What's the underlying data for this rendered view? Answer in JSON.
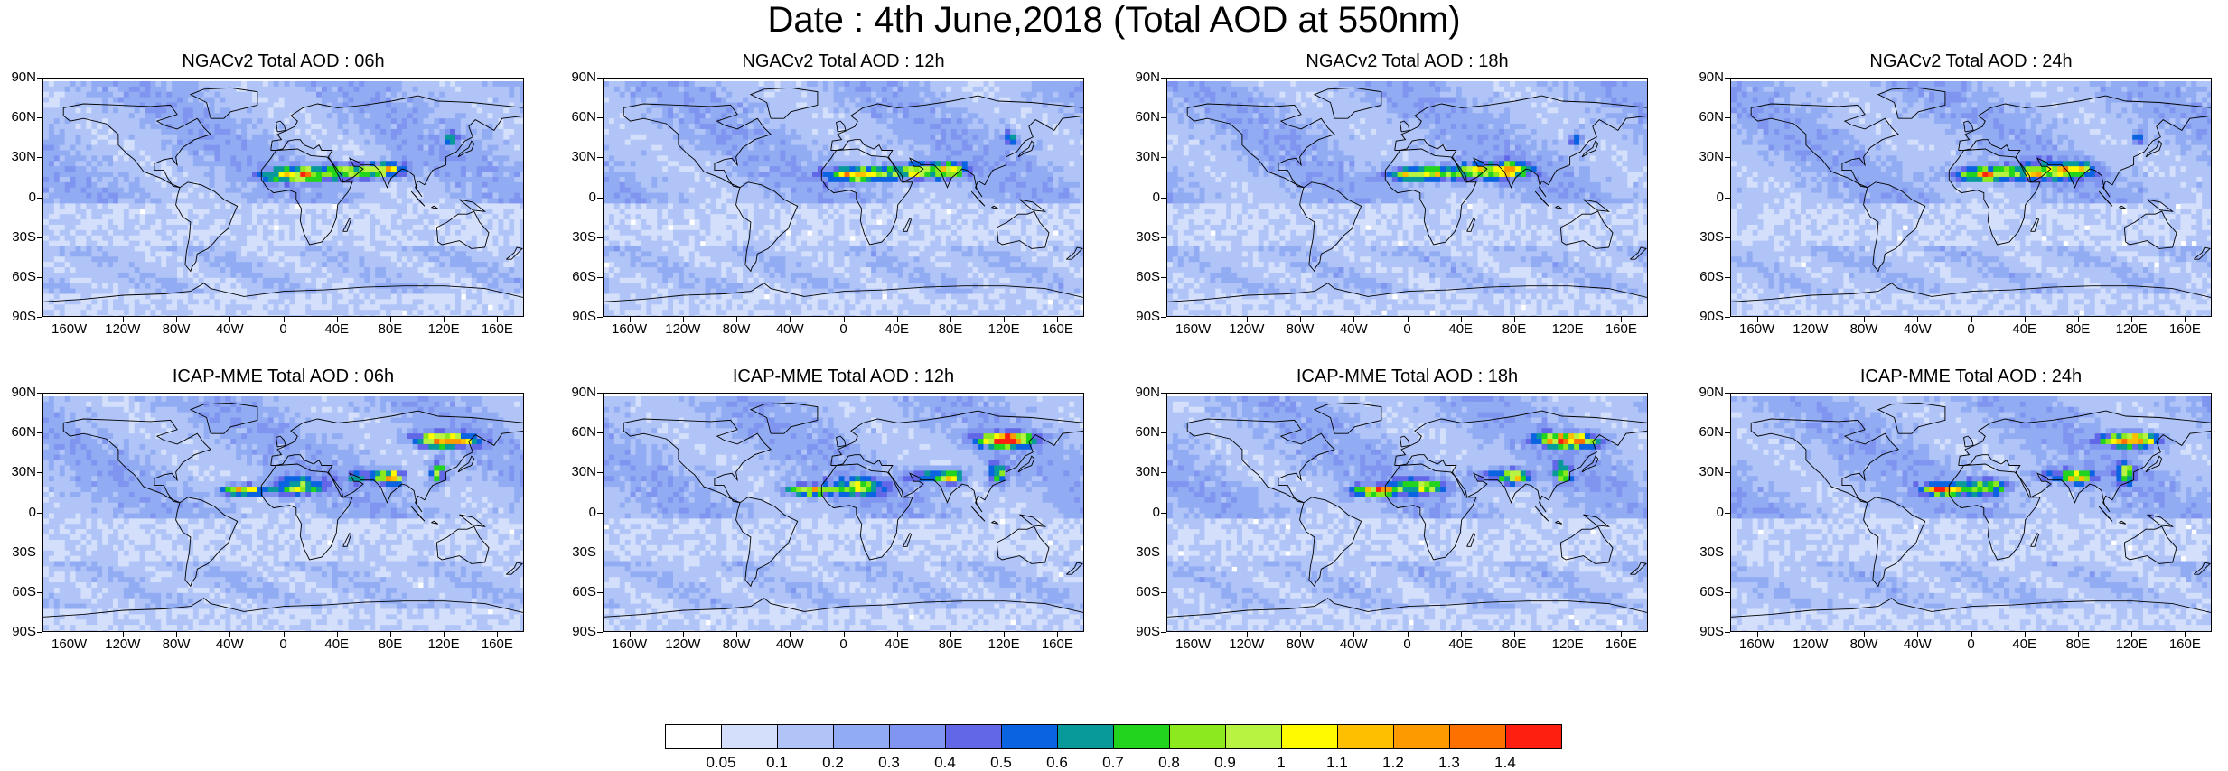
{
  "title": "Date : 4th June,2018 (Total AOD at 550nm)",
  "lat_ticks": [
    "90N",
    "60N",
    "30N",
    "0",
    "30S",
    "60S",
    "90S"
  ],
  "lon_ticks": [
    "160W",
    "120W",
    "80W",
    "40W",
    "0",
    "40E",
    "80E",
    "120E",
    "160E"
  ],
  "lon_values": [
    -160,
    -120,
    -80,
    -40,
    0,
    40,
    80,
    120,
    160
  ],
  "lat_values": [
    90,
    60,
    30,
    0,
    -30,
    -60,
    -90
  ],
  "panels": [
    {
      "title": "NGACv2 Total AOD : 06h",
      "model": "NGACv2",
      "hour": "06h"
    },
    {
      "title": "NGACv2 Total AOD : 12h",
      "model": "NGACv2",
      "hour": "12h"
    },
    {
      "title": "NGACv2 Total AOD : 18h",
      "model": "NGACv2",
      "hour": "18h"
    },
    {
      "title": "NGACv2 Total AOD : 24h",
      "model": "NGACv2",
      "hour": "24h"
    },
    {
      "title": "ICAP-MME Total AOD : 06h",
      "model": "ICAP-MME",
      "hour": "06h"
    },
    {
      "title": "ICAP-MME Total AOD : 12h",
      "model": "ICAP-MME",
      "hour": "12h"
    },
    {
      "title": "ICAP-MME Total AOD : 18h",
      "model": "ICAP-MME",
      "hour": "18h"
    },
    {
      "title": "ICAP-MME Total AOD : 24h",
      "model": "ICAP-MME",
      "hour": "24h"
    }
  ],
  "colorbar": {
    "labels": [
      "0.05",
      "0.1",
      "0.2",
      "0.3",
      "0.4",
      "0.5",
      "0.6",
      "0.7",
      "0.8",
      "0.9",
      "1",
      "1.1",
      "1.2",
      "1.3",
      "1.4"
    ],
    "colors": [
      "#ffffff",
      "#d4e0fb",
      "#b0c4f7",
      "#92acf3",
      "#7f95ef",
      "#6167e7",
      "#0a63e0",
      "#089a9a",
      "#22d41e",
      "#8ce91e",
      "#b8f342",
      "#fffa00",
      "#fdbf00",
      "#fd9a00",
      "#fd7100",
      "#fd2010"
    ]
  }
}
